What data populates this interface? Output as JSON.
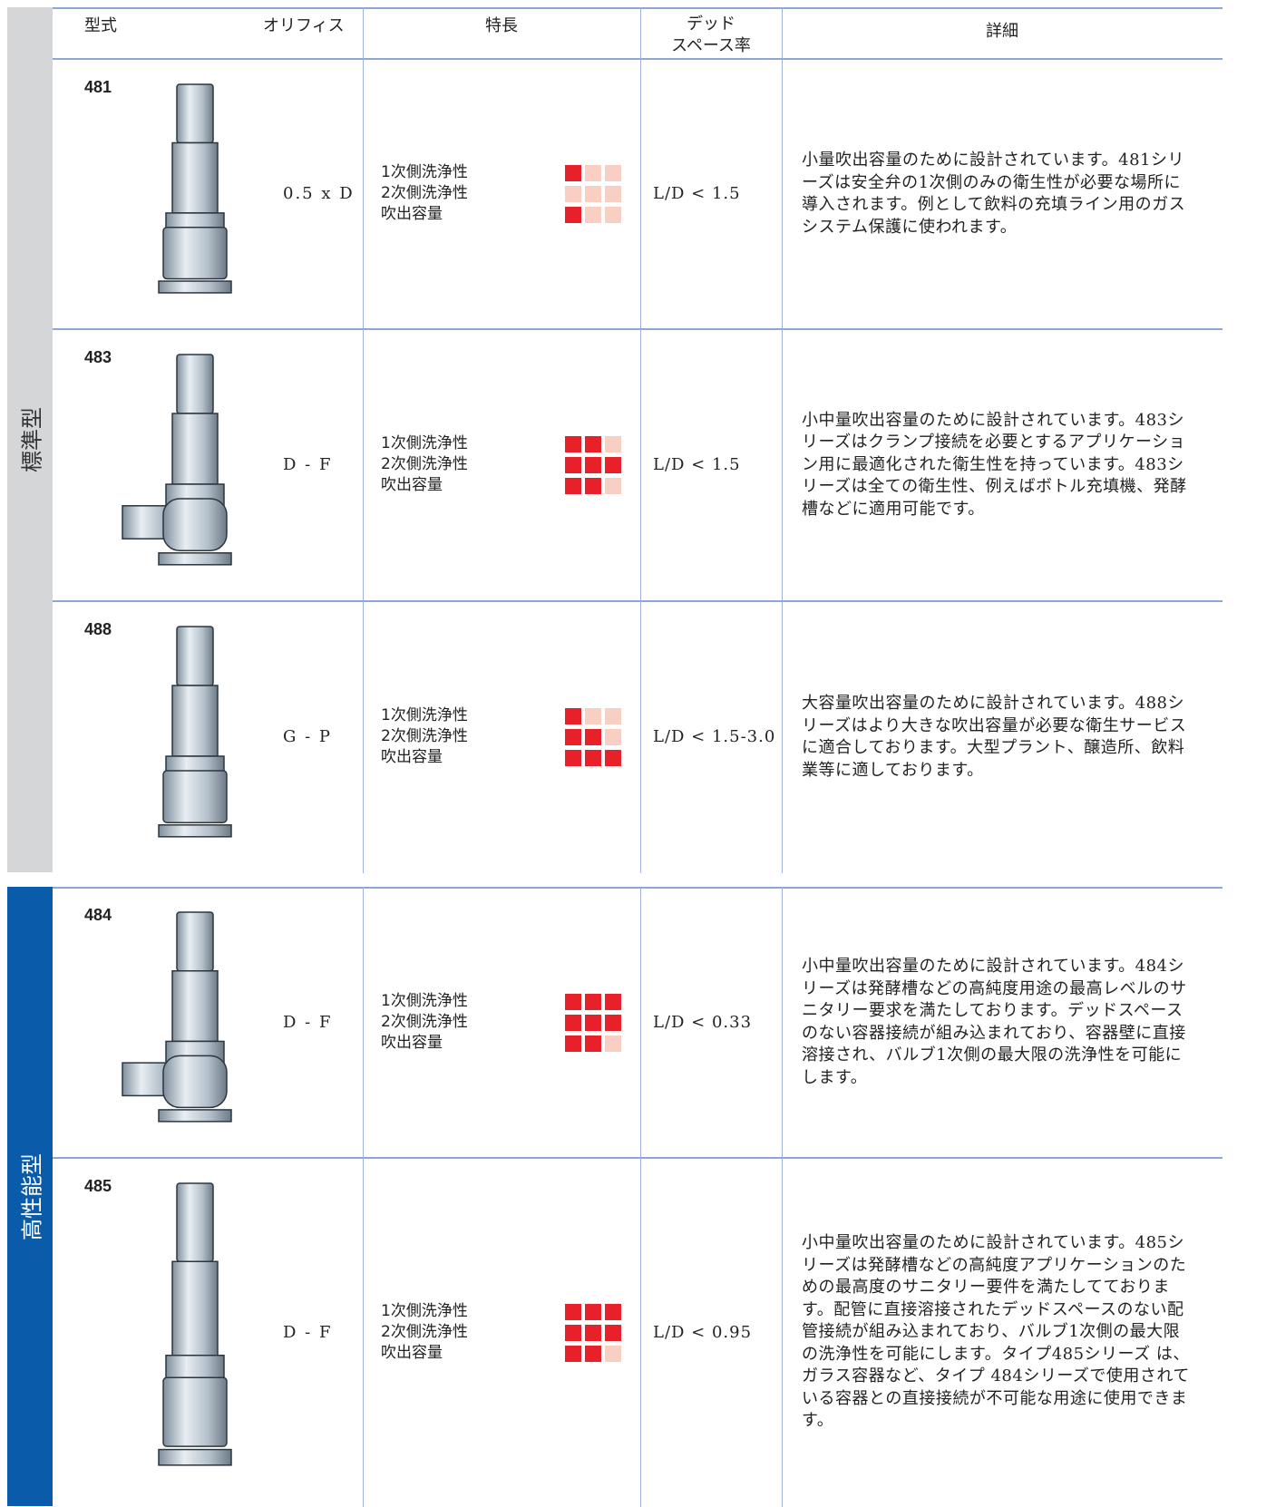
{
  "header": {
    "model": "型式",
    "orifice": "オリフィス",
    "features": "特長",
    "dead_space": [
      "デッド",
      "スペース率"
    ],
    "detail": "詳細"
  },
  "feature_names": [
    "1次側洗浄性",
    "2次側洗浄性",
    "吹出容量"
  ],
  "groups": [
    {
      "label": "標準型",
      "rows": [
        {
          "model": "481",
          "orifice": "0.5 x D",
          "ratings": [
            1,
            0,
            1
          ],
          "dead_space": "L/D < 1.5",
          "detail": "小量吹出容量のために設計されています。481シリーズは安全弁の1次側のみの衛生性が必要な場所に導入されます。例として飲料の充填ライン用のガスシステム保護に使われます。"
        },
        {
          "model": "483",
          "orifice": "D - F",
          "ratings": [
            2,
            3,
            2
          ],
          "dead_space": "L/D < 1.5",
          "detail": "小中量吹出容量のために設計されています。483シリーズはクランプ接続を必要とするアプリケーション用に最適化された衛生性を持っています。483シリーズは全ての衛生性、例えばボトル充填機、発酵槽などに適用可能です。"
        },
        {
          "model": "488",
          "orifice": "G - P",
          "ratings": [
            1,
            2,
            3
          ],
          "dead_space": "L/D < 1.5-3.0",
          "detail": "大容量吹出容量のために設計されています。488シリーズはより大きな吹出容量が必要な衛生サービスに適合しております。大型プラント、醸造所、飲料業等に適しております。"
        }
      ]
    },
    {
      "label": "高性能型",
      "rows": [
        {
          "model": "484",
          "orifice": "D - F",
          "ratings": [
            3,
            3,
            2
          ],
          "dead_space": "L/D < 0.33",
          "detail": "小中量吹出容量のために設計されています。484シリーズは発酵槽などの高純度用途の最高レベルのサニタリー要求を満たしております。デッドスペースのない容器接続が組み込まれており、容器壁に直接溶接され、バルブ1次側の最大限の洗浄性を可能にします。"
        },
        {
          "model": "485",
          "orifice": "D - F",
          "ratings": [
            3,
            3,
            2
          ],
          "dead_space": "L/D < 0.95",
          "detail": "小中量吹出容量のために設計されています。485シリーズは発酵槽などの高純度アプリケーションのための最高度のサニタリー要件を満たしてております。配管に直接溶接されたデッドスペースのない配管接続が組み込まれており、バルブ1次側の最大限の洗浄性を可能にします。タイプ485シリーズ は、ガラス容器など、タイプ 484シリーズで使用されている容器との直接接続が不可能な用途に使用できます。"
        }
      ]
    }
  ]
}
